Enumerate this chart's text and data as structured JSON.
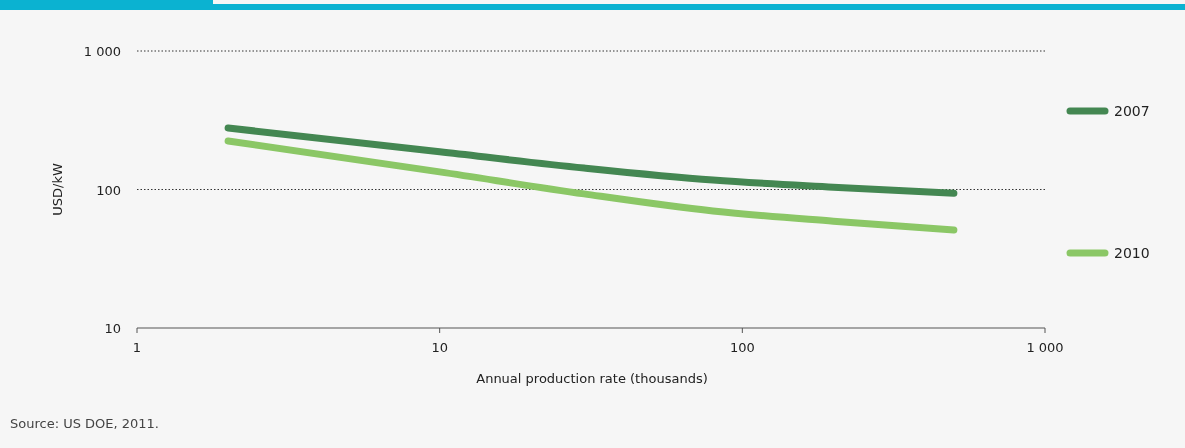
{
  "chart_data": {
    "type": "line",
    "xlabel": "Annual production rate (thousands)",
    "ylabel": "USD/kW",
    "log": "xy",
    "xlim": [
      1,
      1000
    ],
    "xticks": [
      1,
      10,
      100,
      {
        "value": 1000,
        "label": "1 000"
      }
    ],
    "ylim": [
      10,
      1000
    ],
    "yticks": [
      10,
      100,
      {
        "value": 1000,
        "label": "1 000"
      }
    ],
    "grid": "y",
    "legend": "right",
    "line_style": "solid",
    "marker": "none",
    "annotations": [
      "Source: US DOE, 2011."
    ],
    "series": [
      {
        "name": "2007",
        "color": "#448752",
        "x": [
          2,
          10,
          30,
          80,
          200,
          500
        ],
        "values": [
          278,
          187,
          143,
          117,
          104,
          94
        ]
      },
      {
        "name": "2010",
        "color": "#8bc766",
        "x": [
          2,
          10,
          30,
          80,
          200,
          500
        ],
        "values": [
          224,
          134,
          93,
          70,
          59,
          51
        ]
      }
    ]
  }
}
